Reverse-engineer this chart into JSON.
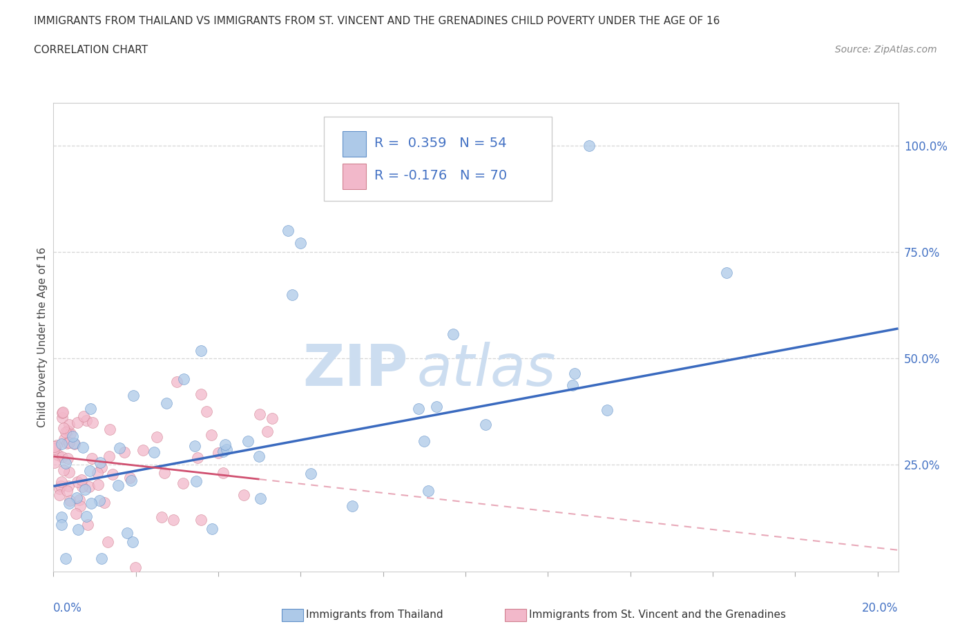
{
  "title_line1": "IMMIGRANTS FROM THAILAND VS IMMIGRANTS FROM ST. VINCENT AND THE GRENADINES CHILD POVERTY UNDER THE AGE OF 16",
  "title_line2": "CORRELATION CHART",
  "source_text": "Source: ZipAtlas.com",
  "ylabel": "Child Poverty Under the Age of 16",
  "r_thailand": 0.359,
  "n_thailand": 54,
  "r_stv": -0.176,
  "n_stv": 70,
  "legend_label_1": "Immigrants from Thailand",
  "legend_label_2": "Immigrants from St. Vincent and the Grenadines",
  "color_thailand": "#adc9e8",
  "color_stv": "#f2b8ca",
  "color_trend_thailand": "#3a6abf",
  "color_trend_stv_solid": "#d05070",
  "color_trend_stv_dash": "#e8a8b8",
  "watermark_color": "#ccddf0",
  "right_axis_color": "#4472c4",
  "xmin": 0.0,
  "xmax": 0.205,
  "ymin": 0.0,
  "ymax": 1.1,
  "trend_th_x0": 0.0,
  "trend_th_y0": 0.2,
  "trend_th_x1": 0.205,
  "trend_th_y1": 0.57,
  "trend_stv_x0": 0.0,
  "trend_stv_y0": 0.27,
  "trend_stv_x1": 0.205,
  "trend_stv_y1": 0.05,
  "trend_stv_solid_end": 0.05
}
